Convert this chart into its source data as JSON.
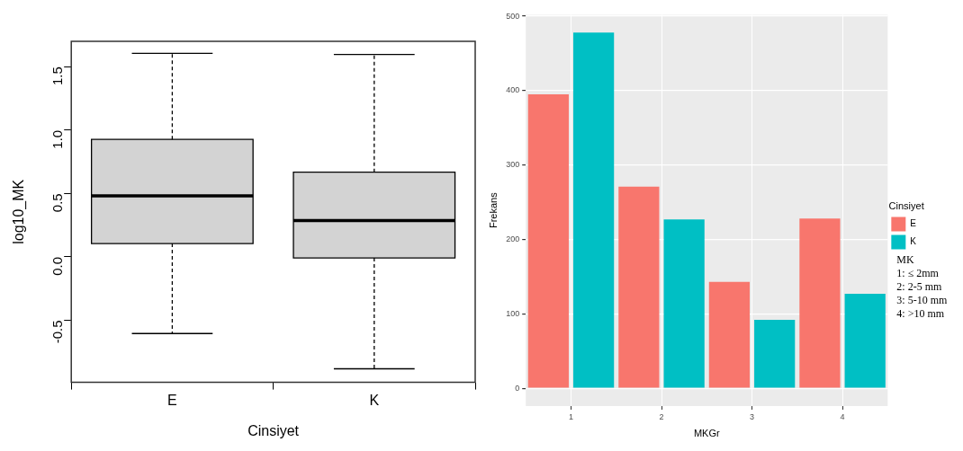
{
  "chart_data": [
    {
      "type": "box",
      "xlabel": "Cinsiyet",
      "ylabel": "log10_MK",
      "categories": [
        "E",
        "K"
      ],
      "series": [
        {
          "color": "#d3d3d3",
          "boxes": [
            {
              "low": -0.605,
              "q1": 0.105,
              "median": 0.482,
              "q3": 0.926,
              "high": 1.605
            },
            {
              "low": -0.883,
              "q1": -0.008,
              "median": 0.286,
              "q3": 0.668,
              "high": 1.597
            }
          ]
        }
      ],
      "ylim": [
        -0.99,
        1.7
      ],
      "yticks": [
        -0.5,
        {
          "value": 0,
          "label": "0.0"
        },
        0.5,
        {
          "value": 1,
          "label": "1.0"
        },
        1.5
      ],
      "grid": false
    },
    {
      "type": "bar",
      "xlabel": "MKGr",
      "ylabel": "Frekans",
      "categories": [
        "1",
        "2",
        "3",
        "4"
      ],
      "series": [
        {
          "name": "E",
          "color": "#f8766d",
          "values": [
            395,
            271,
            143,
            228
          ]
        },
        {
          "name": "K",
          "color": "#00bfc4",
          "values": [
            478,
            227,
            92,
            127
          ]
        }
      ],
      "ylim": [
        -24,
        502
      ],
      "yticks": [
        0,
        100,
        200,
        300,
        400,
        500
      ],
      "grid": true,
      "legend": "right",
      "legend_title": "Cinsiyet",
      "annotations": [
        "MK",
        "1: ≤ 2mm",
        "2: 2-5 mm",
        "3: 5-10 mm",
        "4: >10 mm"
      ]
    }
  ]
}
